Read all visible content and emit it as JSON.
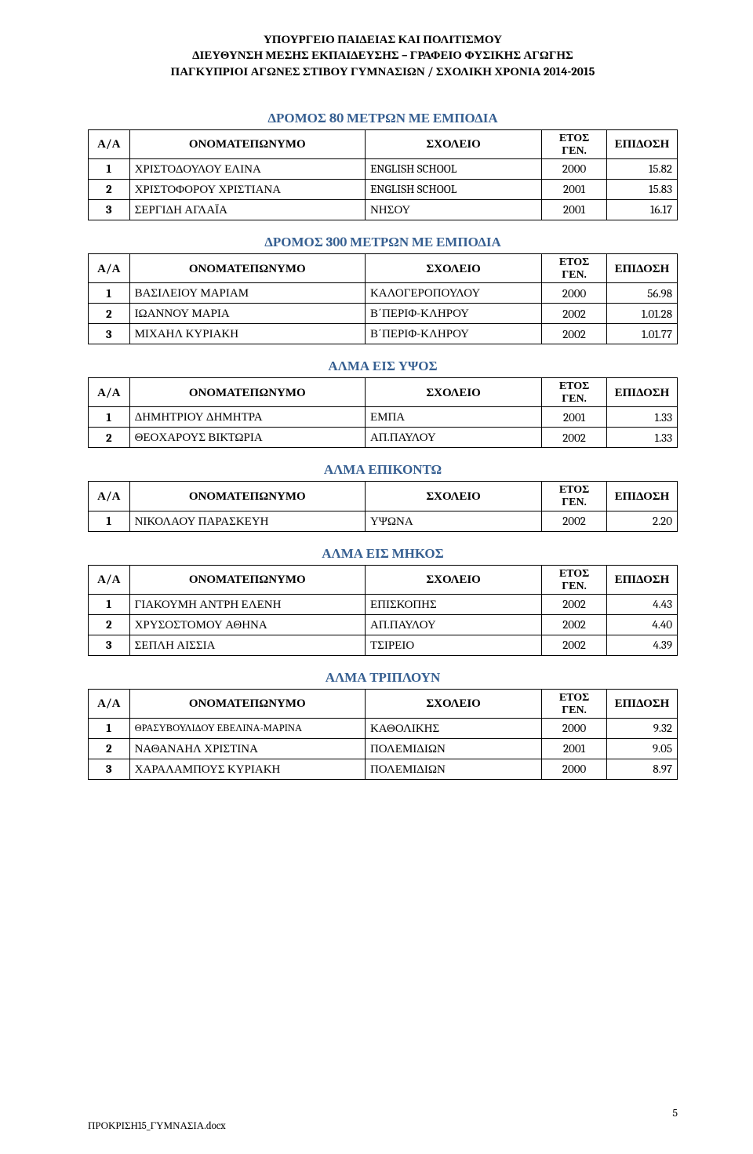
{
  "header": {
    "line1": "ΥΠΟΥΡΓΕΙΟ ΠΑΙΔΕΙΑΣ ΚΑΙ ΠΟΛΙΤΙΣΜΟΥ",
    "line2": "ΔΙΕΥΘΥΝΣΗ ΜΕΣΗΣ ΕΚΠΑΙΔΕΥΣΗΣ – ΓΡΑΦΕΙΟ ΦΥΣΙΚΗΣ ΑΓΩΓΗΣ",
    "line3": "ΠΑΓΚΥΠΡΙΟΙ ΑΓΩΝΕΣ ΣΤΙΒΟΥ ΓΥΜΝΑΣΙΩΝ / ΣΧΟΛΙΚΗ ΧΡΟΝΙΑ 2014-2015"
  },
  "columns": {
    "aa": "Α/Α",
    "name": "ΟΝΟΜΑΤΕΠΩΝΥΜΟ",
    "school": "ΣΧΟΛΕΙΟ",
    "year_l1": "ΕΤΟΣ",
    "year_l2": "ΓΕΝ.",
    "perf": "ΕΠΙΔΟΣΗ"
  },
  "events": [
    {
      "title": "ΔΡΟΜΟΣ 80 ΜΕΤΡΩΝ ΜΕ ΕΜΠΟΔΙΑ",
      "rows": [
        {
          "aa": "1",
          "name": "ΧΡΙΣΤΟΔΟΥΛΟΥ ΕΛΙΝΑ",
          "school": "ENGLISH SCHOOL",
          "year": "2000",
          "perf": "15.82"
        },
        {
          "aa": "2",
          "name": "ΧΡΙΣΤΟΦΟΡΟΥ ΧΡΙΣΤΙΑΝΑ",
          "school": "ENGLISH SCHOOL",
          "year": "2001",
          "perf": "15.83"
        },
        {
          "aa": "3",
          "name": "ΣΕΡΓΙΔΗ ΑΓΛΑΪΑ",
          "school": "ΝΗΣΟΥ",
          "year": "2001",
          "perf": "16.17"
        }
      ]
    },
    {
      "title": "ΔΡΟΜΟΣ 300 ΜΕΤΡΩΝ ΜΕ ΕΜΠΟΔΙΑ",
      "rows": [
        {
          "aa": "1",
          "name": "ΒΑΣΙΛΕΙΟΥ ΜΑΡΙΑΜ",
          "school": "ΚΑΛΟΓΕΡΟΠΟΥΛΟΥ",
          "year": "2000",
          "perf": "56.98"
        },
        {
          "aa": "2",
          "name": "ΙΩΑΝΝΟΥ ΜΑΡΙΑ",
          "school": "Β΄ΠΕΡΙΦ-ΚΛΗΡΟΥ",
          "year": "2002",
          "perf": "1.01.28"
        },
        {
          "aa": "3",
          "name": "ΜΙΧΑΗΛ ΚΥΡΙΑΚΗ",
          "school": "Β΄ΠΕΡΙΦ-ΚΛΗΡΟΥ",
          "year": "2002",
          "perf": "1.01.77"
        }
      ]
    },
    {
      "title": "ΑΛΜΑ ΕΙΣ ΥΨΟΣ",
      "rows": [
        {
          "aa": "1",
          "name": "ΔΗΜΗΤΡΙΟΥ ΔΗΜΗΤΡΑ",
          "school": "ΕΜΠΑ",
          "year": "2001",
          "perf": "1.33"
        },
        {
          "aa": "2",
          "name": "ΘΕΟΧΑΡΟΥΣ ΒΙΚΤΩΡΙΑ",
          "school": "ΑΠ.ΠΑΥΛΟΥ",
          "year": "2002",
          "perf": "1.33"
        }
      ]
    },
    {
      "title": "ΑΛΜΑ ΕΠΙΚΟΝΤΩ",
      "rows": [
        {
          "aa": "1",
          "name": "ΝΙΚΟΛΑΟΥ ΠΑΡΑΣΚΕΥΗ",
          "school": "ΥΨΩΝΑ",
          "year": "2002",
          "perf": "2.20"
        }
      ]
    },
    {
      "title": "ΑΛΜΑ ΕΙΣ ΜΗΚΟΣ",
      "rows": [
        {
          "aa": "1",
          "name": "ΓΙΑΚΟΥΜΗ ΑΝΤΡΗ ΕΛΕΝΗ",
          "school": "ΕΠΙΣΚΟΠΗΣ",
          "year": "2002",
          "perf": "4.43"
        },
        {
          "aa": "2",
          "name": "ΧΡΥΣΟΣΤΟΜΟΥ ΑΘΗΝΑ",
          "school": "ΑΠ.ΠΑΥΛΟΥ",
          "year": "2002",
          "perf": "4.40"
        },
        {
          "aa": "3",
          "name": "ΣΕΠΛΗ ΑΙΣΣΙΑ",
          "school": "ΤΣΙΡΕΙΟ",
          "year": "2002",
          "perf": "4.39"
        }
      ]
    },
    {
      "title": "ΑΛΜΑ ΤΡΙΠΛΟΥΝ",
      "rows": [
        {
          "aa": "1",
          "name": "ΘΡΑΣΥΒΟΥΛΙΔΟΥ ΕΒΕΛΙΝΑ-ΜΑΡΙΝΑ",
          "school": "ΚΑΘΟΛΙΚΗΣ",
          "year": "2000",
          "perf": "9.32",
          "small": true
        },
        {
          "aa": "2",
          "name": "ΝΑΘΑΝΑΗΛ ΧΡΙΣΤΙΝΑ",
          "school": "ΠΟΛΕΜΙΔΙΩΝ",
          "year": "2001",
          "perf": "9.05"
        },
        {
          "aa": "3",
          "name": "ΧΑΡΑΛΑΜΠΟΥΣ ΚΥΡΙΑΚΗ",
          "school": "ΠΟΛΕΜΙΔΙΩΝ",
          "year": "2000",
          "perf": "8.97"
        }
      ]
    }
  ],
  "footer": {
    "file": "ΠΡΟΚΡΙΣΗ15_ΓΥΜΝΑΣΙΑ.docx",
    "page": "5"
  },
  "styles": {
    "title_color": "#365f91",
    "border_color": "#000000",
    "text_color": "#000000",
    "background": "#ffffff",
    "header_fontsize": 15,
    "title_fontsize": 17,
    "cell_fontsize": 15,
    "small_name_fontsize": 12.5
  }
}
